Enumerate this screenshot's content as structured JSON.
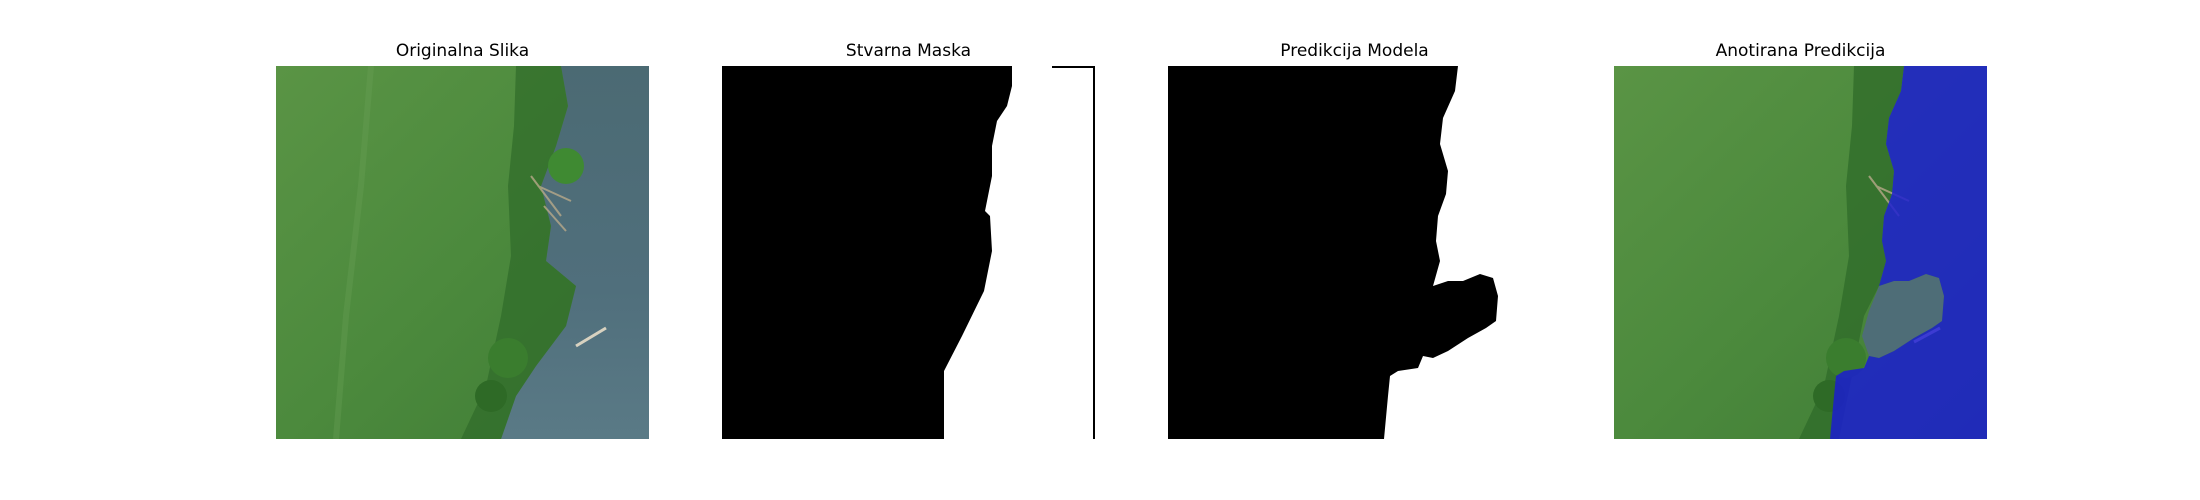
{
  "panels": [
    {
      "title": "Originalna Slika"
    },
    {
      "title": "Stvarna Maska"
    },
    {
      "title": "Predikcija Modela"
    },
    {
      "title": "Anotirana Predikcija"
    }
  ],
  "colors": {
    "land": "#4f8a3e",
    "land_dark": "#2f6b2a",
    "water": "#4d6b78",
    "mask_background": "#000000",
    "mask_foreground": "#ffffff",
    "overlay": "#1a1ad6"
  }
}
